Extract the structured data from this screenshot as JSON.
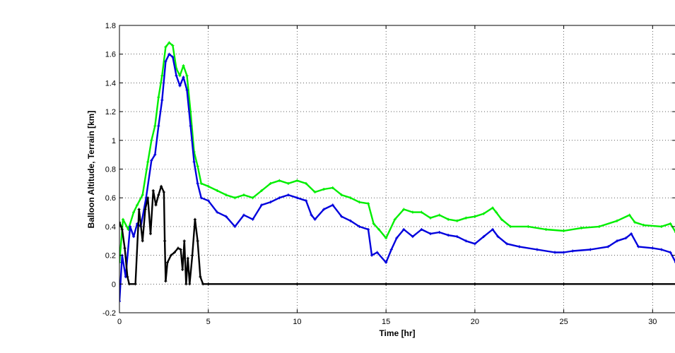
{
  "chart_data": {
    "type": "line",
    "title": "",
    "xlabel": "Time [hr]",
    "ylabel": "Balloon Altitude, Terrain [km]",
    "xlim": [
      0,
      31.3
    ],
    "ylim": [
      -0.2,
      1.8
    ],
    "xticks": [
      0,
      5,
      10,
      15,
      20,
      25,
      30
    ],
    "yticks": [
      -0.2,
      0,
      0.2,
      0.4,
      0.6,
      0.8,
      1,
      1.2,
      1.4,
      1.6,
      1.8
    ],
    "xtick_labels": [
      "0",
      "5",
      "10",
      "15",
      "20",
      "25",
      "30"
    ],
    "ytick_labels": [
      "-0.2",
      "0",
      "0.2",
      "0.4",
      "0.6",
      "0.8",
      "1",
      "1.2",
      "1.4",
      "1.6",
      "1.8"
    ],
    "grid": true,
    "legend": "none",
    "series": [
      {
        "color": "#00ee00",
        "points": [
          [
            0,
            0.15
          ],
          [
            0.2,
            0.45
          ],
          [
            0.5,
            0.38
          ],
          [
            0.8,
            0.5
          ],
          [
            1.0,
            0.55
          ],
          [
            1.3,
            0.62
          ],
          [
            1.6,
            0.85
          ],
          [
            1.8,
            1.0
          ],
          [
            2.0,
            1.1
          ],
          [
            2.2,
            1.3
          ],
          [
            2.4,
            1.45
          ],
          [
            2.6,
            1.65
          ],
          [
            2.8,
            1.68
          ],
          [
            3.0,
            1.66
          ],
          [
            3.2,
            1.5
          ],
          [
            3.4,
            1.45
          ],
          [
            3.6,
            1.52
          ],
          [
            3.8,
            1.45
          ],
          [
            4.0,
            1.2
          ],
          [
            4.2,
            0.92
          ],
          [
            4.4,
            0.82
          ],
          [
            4.6,
            0.7
          ],
          [
            5.0,
            0.68
          ],
          [
            5.5,
            0.65
          ],
          [
            6.0,
            0.62
          ],
          [
            6.5,
            0.6
          ],
          [
            7.0,
            0.62
          ],
          [
            7.5,
            0.6
          ],
          [
            8.0,
            0.65
          ],
          [
            8.5,
            0.7
          ],
          [
            9.0,
            0.72
          ],
          [
            9.5,
            0.7
          ],
          [
            10.0,
            0.72
          ],
          [
            10.5,
            0.7
          ],
          [
            11.0,
            0.64
          ],
          [
            11.5,
            0.66
          ],
          [
            12.0,
            0.67
          ],
          [
            12.5,
            0.62
          ],
          [
            13.0,
            0.6
          ],
          [
            13.5,
            0.57
          ],
          [
            14.0,
            0.56
          ],
          [
            14.3,
            0.42
          ],
          [
            14.6,
            0.38
          ],
          [
            15.0,
            0.32
          ],
          [
            15.5,
            0.45
          ],
          [
            16.0,
            0.52
          ],
          [
            16.5,
            0.5
          ],
          [
            17.0,
            0.5
          ],
          [
            17.5,
            0.46
          ],
          [
            18.0,
            0.48
          ],
          [
            18.5,
            0.45
          ],
          [
            19.0,
            0.44
          ],
          [
            19.5,
            0.46
          ],
          [
            20.0,
            0.47
          ],
          [
            20.5,
            0.49
          ],
          [
            21.0,
            0.53
          ],
          [
            21.2,
            0.5
          ],
          [
            21.5,
            0.45
          ],
          [
            22.0,
            0.4
          ],
          [
            23.0,
            0.4
          ],
          [
            24.0,
            0.38
          ],
          [
            25.0,
            0.37
          ],
          [
            26.0,
            0.39
          ],
          [
            27.0,
            0.4
          ],
          [
            28.0,
            0.44
          ],
          [
            28.7,
            0.48
          ],
          [
            29.0,
            0.43
          ],
          [
            29.5,
            0.41
          ],
          [
            30.5,
            0.4
          ],
          [
            31.0,
            0.42
          ],
          [
            31.3,
            0.36
          ]
        ]
      },
      {
        "color": "#0000dd",
        "points": [
          [
            0,
            -0.12
          ],
          [
            0.15,
            0.2
          ],
          [
            0.35,
            0.05
          ],
          [
            0.6,
            0.4
          ],
          [
            0.8,
            0.33
          ],
          [
            1.0,
            0.42
          ],
          [
            1.2,
            0.4
          ],
          [
            1.5,
            0.6
          ],
          [
            1.8,
            0.86
          ],
          [
            2.0,
            0.9
          ],
          [
            2.2,
            1.1
          ],
          [
            2.4,
            1.28
          ],
          [
            2.6,
            1.55
          ],
          [
            2.8,
            1.6
          ],
          [
            3.0,
            1.58
          ],
          [
            3.2,
            1.45
          ],
          [
            3.4,
            1.38
          ],
          [
            3.6,
            1.44
          ],
          [
            3.8,
            1.35
          ],
          [
            4.0,
            1.1
          ],
          [
            4.2,
            0.85
          ],
          [
            4.4,
            0.7
          ],
          [
            4.6,
            0.6
          ],
          [
            5.0,
            0.58
          ],
          [
            5.5,
            0.5
          ],
          [
            6.0,
            0.47
          ],
          [
            6.5,
            0.4
          ],
          [
            7.0,
            0.48
          ],
          [
            7.5,
            0.45
          ],
          [
            8.0,
            0.55
          ],
          [
            8.5,
            0.57
          ],
          [
            9.0,
            0.6
          ],
          [
            9.5,
            0.62
          ],
          [
            10.0,
            0.6
          ],
          [
            10.5,
            0.58
          ],
          [
            10.8,
            0.48
          ],
          [
            11.0,
            0.45
          ],
          [
            11.5,
            0.52
          ],
          [
            12.0,
            0.55
          ],
          [
            12.5,
            0.47
          ],
          [
            13.0,
            0.44
          ],
          [
            13.5,
            0.4
          ],
          [
            14.0,
            0.38
          ],
          [
            14.2,
            0.2
          ],
          [
            14.5,
            0.22
          ],
          [
            15.0,
            0.15
          ],
          [
            15.3,
            0.24
          ],
          [
            15.6,
            0.32
          ],
          [
            16.0,
            0.38
          ],
          [
            16.5,
            0.33
          ],
          [
            17.0,
            0.38
          ],
          [
            17.5,
            0.35
          ],
          [
            18.0,
            0.36
          ],
          [
            18.5,
            0.34
          ],
          [
            19.0,
            0.33
          ],
          [
            19.5,
            0.3
          ],
          [
            20.0,
            0.28
          ],
          [
            20.5,
            0.33
          ],
          [
            21.0,
            0.38
          ],
          [
            21.3,
            0.33
          ],
          [
            21.8,
            0.28
          ],
          [
            22.5,
            0.26
          ],
          [
            23.5,
            0.24
          ],
          [
            24.5,
            0.22
          ],
          [
            25.0,
            0.22
          ],
          [
            25.5,
            0.23
          ],
          [
            26.5,
            0.24
          ],
          [
            27.5,
            0.26
          ],
          [
            28.0,
            0.3
          ],
          [
            28.5,
            0.32
          ],
          [
            28.8,
            0.35
          ],
          [
            29.2,
            0.26
          ],
          [
            30.0,
            0.25
          ],
          [
            30.5,
            0.24
          ],
          [
            31.0,
            0.22
          ],
          [
            31.3,
            0.15
          ]
        ]
      },
      {
        "color": "#000000",
        "points": [
          [
            0,
            0.43
          ],
          [
            0.15,
            0.38
          ],
          [
            0.3,
            0.25
          ],
          [
            0.45,
            0.05
          ],
          [
            0.55,
            0.0
          ],
          [
            0.9,
            0.0
          ],
          [
            1.1,
            0.52
          ],
          [
            1.3,
            0.3
          ],
          [
            1.45,
            0.52
          ],
          [
            1.6,
            0.6
          ],
          [
            1.75,
            0.35
          ],
          [
            1.9,
            0.65
          ],
          [
            2.05,
            0.55
          ],
          [
            2.2,
            0.62
          ],
          [
            2.35,
            0.68
          ],
          [
            2.5,
            0.64
          ],
          [
            2.55,
            0.3
          ],
          [
            2.6,
            0.02
          ],
          [
            2.7,
            0.15
          ],
          [
            2.9,
            0.2
          ],
          [
            3.1,
            0.22
          ],
          [
            3.3,
            0.25
          ],
          [
            3.45,
            0.24
          ],
          [
            3.55,
            0.1
          ],
          [
            3.65,
            0.3
          ],
          [
            3.75,
            0.0
          ],
          [
            3.85,
            0.18
          ],
          [
            3.95,
            0.0
          ],
          [
            4.1,
            0.2
          ],
          [
            4.25,
            0.45
          ],
          [
            4.4,
            0.3
          ],
          [
            4.55,
            0.05
          ],
          [
            4.7,
            0.0
          ],
          [
            5.0,
            0.0
          ],
          [
            10.0,
            0.0
          ],
          [
            15.0,
            0.0
          ],
          [
            20.0,
            0.0
          ],
          [
            25.0,
            0.0
          ],
          [
            30.0,
            0.0
          ],
          [
            31.3,
            0.0
          ]
        ]
      }
    ]
  }
}
